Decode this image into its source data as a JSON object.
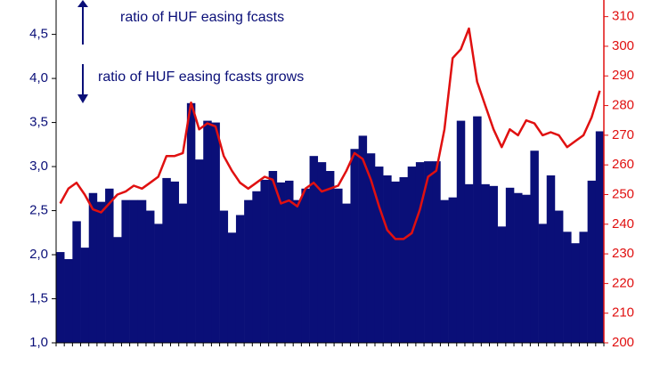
{
  "chart_data": {
    "type": "bar-line",
    "annotations": [
      "ratio of HUF easing fcasts",
      "ratio of HUF easing fcasts grows"
    ],
    "categories": [
      null,
      null,
      null,
      null,
      null,
      null,
      null,
      null,
      null,
      null,
      null,
      null,
      null,
      null,
      null,
      null,
      null,
      null,
      null,
      null,
      null,
      null,
      null,
      null,
      null,
      null,
      null,
      null,
      null,
      null,
      null,
      null,
      null,
      null,
      null,
      null,
      null,
      null,
      null,
      null,
      null,
      null,
      null,
      null,
      null,
      null,
      null,
      null,
      null,
      null,
      null,
      null,
      null,
      null,
      null,
      null,
      null,
      null,
      null,
      null,
      null,
      null,
      null,
      null,
      null,
      null,
      null
    ],
    "series": [
      {
        "color": "#0a0f78",
        "kind": "bar",
        "axis": "y",
        "values": [
          2.03,
          1.95,
          2.38,
          2.08,
          2.7,
          2.6,
          2.75,
          2.2,
          2.62,
          2.62,
          2.62,
          2.5,
          2.35,
          2.87,
          2.83,
          2.58,
          3.72,
          3.08,
          3.52,
          3.5,
          2.5,
          2.25,
          2.45,
          2.62,
          2.72,
          2.85,
          2.95,
          2.82,
          2.84,
          2.62,
          2.75,
          3.12,
          3.05,
          2.95,
          2.75,
          2.58,
          3.2,
          3.35,
          3.15,
          3.0,
          2.9,
          2.83,
          2.88,
          3.0,
          3.05,
          3.06,
          3.06,
          2.62,
          2.65,
          3.52,
          2.8,
          3.57,
          2.8,
          2.78,
          2.32,
          2.76,
          2.7,
          2.68,
          3.18,
          2.35,
          2.9,
          2.5,
          2.26,
          2.13,
          2.26,
          2.84,
          3.4
        ]
      },
      {
        "color": "#e01010",
        "kind": "line",
        "axis": "y2",
        "values": [
          247,
          252,
          254,
          250,
          245,
          244,
          247,
          250,
          251,
          253,
          252,
          254,
          256,
          263,
          263,
          264,
          281,
          272,
          274,
          273,
          263,
          258,
          254,
          252,
          254,
          256,
          255,
          247,
          248,
          246,
          252,
          254,
          251,
          252,
          253,
          258,
          264,
          262,
          255,
          246,
          238,
          235,
          235,
          237,
          245,
          256,
          258,
          272,
          296,
          299,
          306,
          288,
          280,
          272,
          266,
          272,
          270,
          275,
          274,
          270,
          271,
          270,
          266,
          268,
          270,
          276,
          285
        ]
      }
    ],
    "ylim": [
      1,
      4.89
    ],
    "yticks": [
      {
        "value": 1,
        "label": "1,0"
      },
      {
        "value": 1.5,
        "label": "1,5"
      },
      {
        "value": 2,
        "label": "2,0"
      },
      {
        "value": 2.5,
        "label": "2,5"
      },
      {
        "value": 3,
        "label": "3,0"
      },
      {
        "value": 3.5,
        "label": "3,5"
      },
      {
        "value": 4,
        "label": "4,0"
      },
      {
        "value": 4.5,
        "label": "4,5"
      }
    ],
    "y2lim": [
      200,
      315.6
    ],
    "y2ticks": [
      200,
      210,
      220,
      230,
      240,
      250,
      260,
      270,
      280,
      290,
      300,
      310
    ]
  }
}
